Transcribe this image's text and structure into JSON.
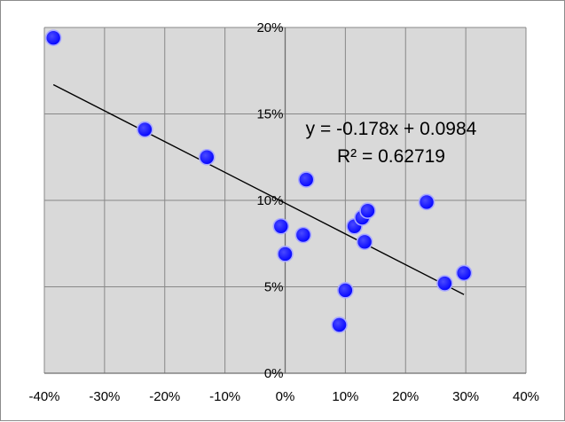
{
  "chart_data": {
    "type": "scatter",
    "title": "",
    "xlabel": "",
    "ylabel": "",
    "xlim": [
      -0.4,
      0.4
    ],
    "ylim": [
      0.0,
      0.2
    ],
    "x_ticks": [
      "-40%",
      "-30%",
      "-20%",
      "-10%",
      "0%",
      "10%",
      "20%",
      "30%",
      "40%"
    ],
    "y_ticks": [
      "0%",
      "5%",
      "10%",
      "15%",
      "20%"
    ],
    "grid": true,
    "plot_background": "#d9d9d9",
    "marker_color": "#0000ff",
    "points": [
      {
        "x": -0.385,
        "y": 0.194
      },
      {
        "x": -0.233,
        "y": 0.141
      },
      {
        "x": -0.13,
        "y": 0.125
      },
      {
        "x": -0.007,
        "y": 0.085
      },
      {
        "x": 0.0,
        "y": 0.069
      },
      {
        "x": 0.03,
        "y": 0.08
      },
      {
        "x": 0.035,
        "y": 0.112
      },
      {
        "x": 0.09,
        "y": 0.028
      },
      {
        "x": 0.1,
        "y": 0.048
      },
      {
        "x": 0.115,
        "y": 0.085
      },
      {
        "x": 0.128,
        "y": 0.09
      },
      {
        "x": 0.132,
        "y": 0.076
      },
      {
        "x": 0.137,
        "y": 0.094
      },
      {
        "x": 0.235,
        "y": 0.099
      },
      {
        "x": 0.265,
        "y": 0.052
      },
      {
        "x": 0.297,
        "y": 0.058
      }
    ],
    "trendline": {
      "slope": -0.178,
      "intercept": 0.0984,
      "x_range": [
        -0.385,
        0.297
      ],
      "equation": "y = -0.178x + 0.0984",
      "r_squared": "R² = 0.62719"
    }
  }
}
